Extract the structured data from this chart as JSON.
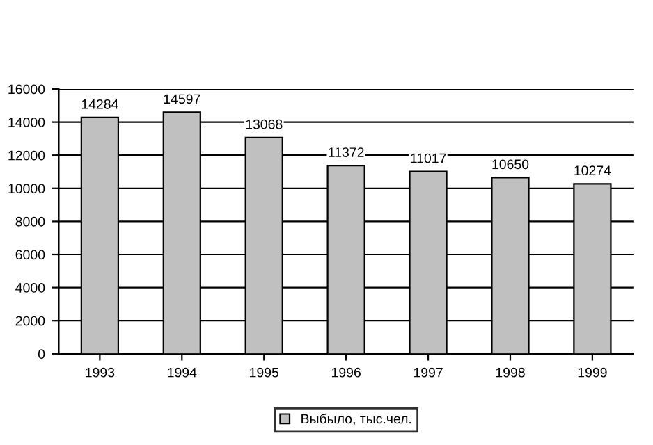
{
  "chart_data": {
    "type": "bar",
    "categories": [
      "1993",
      "1994",
      "1995",
      "1996",
      "1997",
      "1998",
      "1999"
    ],
    "series": [
      {
        "name": "Выбыло, тыс.чел.",
        "color": "#c0c0c0",
        "values": [
          14284,
          14597,
          13068,
          11372,
          11017,
          10650,
          10274
        ]
      }
    ],
    "ylim": [
      0,
      16000
    ],
    "yticks": [
      0,
      2000,
      4000,
      6000,
      8000,
      10000,
      12000,
      14000,
      16000
    ],
    "grid": "y",
    "legend": "bottom",
    "data_labels": true
  }
}
